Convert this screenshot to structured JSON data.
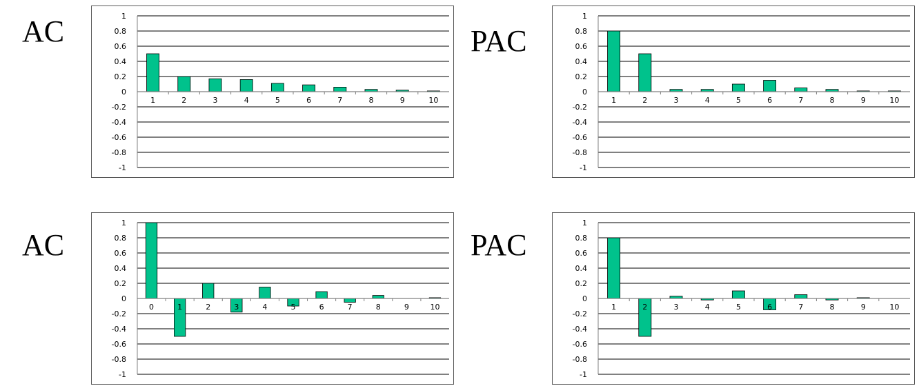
{
  "colors": {
    "bar": "#00C28C",
    "bar_stroke": "#000000",
    "grid": "#000000",
    "axis": "#808080"
  },
  "chart_data": [
    {
      "type": "bar",
      "title": "AC",
      "categories": [
        "1",
        "2",
        "3",
        "4",
        "5",
        "6",
        "7",
        "8",
        "9",
        "10"
      ],
      "values": [
        0.5,
        0.2,
        0.17,
        0.16,
        0.11,
        0.09,
        0.06,
        0.03,
        0.02,
        0.01
      ],
      "ylim": [
        -1,
        1
      ],
      "yticks": [
        "1",
        "0.8",
        "0.6",
        "0.4",
        "0.2",
        "0",
        "-0.2",
        "-0.4",
        "-0.6",
        "-0.8",
        "-1"
      ],
      "xlabel": "",
      "ylabel": "",
      "grid": true
    },
    {
      "type": "bar",
      "title": "PAC",
      "categories": [
        "1",
        "2",
        "3",
        "4",
        "5",
        "6",
        "7",
        "8",
        "9",
        "10"
      ],
      "values": [
        0.8,
        0.5,
        0.03,
        0.03,
        0.1,
        0.15,
        0.05,
        0.03,
        0.01,
        0.01
      ],
      "ylim": [
        -1,
        1
      ],
      "yticks": [
        "1",
        "0.8",
        "0.6",
        "0.4",
        "0.2",
        "0",
        "-0.2",
        "-0.4",
        "-0.6",
        "-0.8",
        "-1"
      ],
      "xlabel": "",
      "ylabel": "",
      "grid": true
    },
    {
      "type": "bar",
      "title": "AC",
      "categories": [
        "0",
        "1",
        "2",
        "3",
        "4",
        "5",
        "6",
        "7",
        "8",
        "9",
        "10"
      ],
      "values": [
        1.0,
        -0.5,
        0.2,
        -0.18,
        0.15,
        -0.1,
        0.09,
        -0.05,
        0.04,
        0.0,
        0.01
      ],
      "ylim": [
        -1,
        1
      ],
      "yticks": [
        "1",
        "0.8",
        "0.6",
        "0.4",
        "0.2",
        "0",
        "-0.2",
        "-0.4",
        "-0.6",
        "-0.8",
        "-1"
      ],
      "xlabel": "",
      "ylabel": "",
      "grid": true
    },
    {
      "type": "bar",
      "title": "PAC",
      "categories": [
        "1",
        "2",
        "3",
        "4",
        "5",
        "6",
        "7",
        "8",
        "9",
        "10"
      ],
      "values": [
        0.8,
        -0.5,
        0.03,
        -0.02,
        0.1,
        -0.15,
        0.05,
        -0.02,
        0.01,
        0.0
      ],
      "ylim": [
        -1,
        1
      ],
      "yticks": [
        "1",
        "0.8",
        "0.6",
        "0.4",
        "0.2",
        "0",
        "-0.2",
        "-0.4",
        "-0.6",
        "-0.8",
        "-1"
      ],
      "xlabel": "",
      "ylabel": "",
      "grid": true
    }
  ]
}
